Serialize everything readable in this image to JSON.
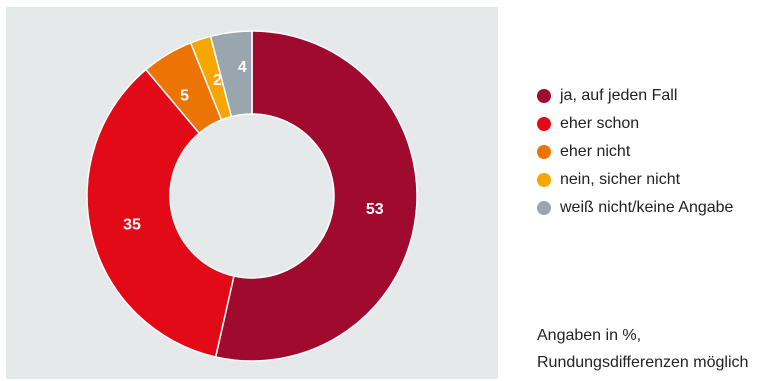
{
  "chart_data": {
    "type": "pie",
    "variant": "donut",
    "title": "",
    "slices": [
      {
        "label": "ja, auf jeden Fall",
        "value": 53,
        "display": "53",
        "color": "#a00a2e"
      },
      {
        "label": "eher schon",
        "value": 35,
        "display": "35",
        "color": "#e30a17"
      },
      {
        "label": "eher nicht",
        "value": 5,
        "display": "5",
        "color": "#ec7404"
      },
      {
        "label": "nein, sicher nicht",
        "value": 2,
        "display": "2",
        "color": "#f7a600"
      },
      {
        "label": "weiß nicht/keine Angabe",
        "value": 4,
        "display": "4",
        "color": "#9aa6ad"
      }
    ],
    "legend_position": "right",
    "note_lines": [
      "Angaben in %,",
      "Rundungsdifferenzen möglich"
    ]
  }
}
